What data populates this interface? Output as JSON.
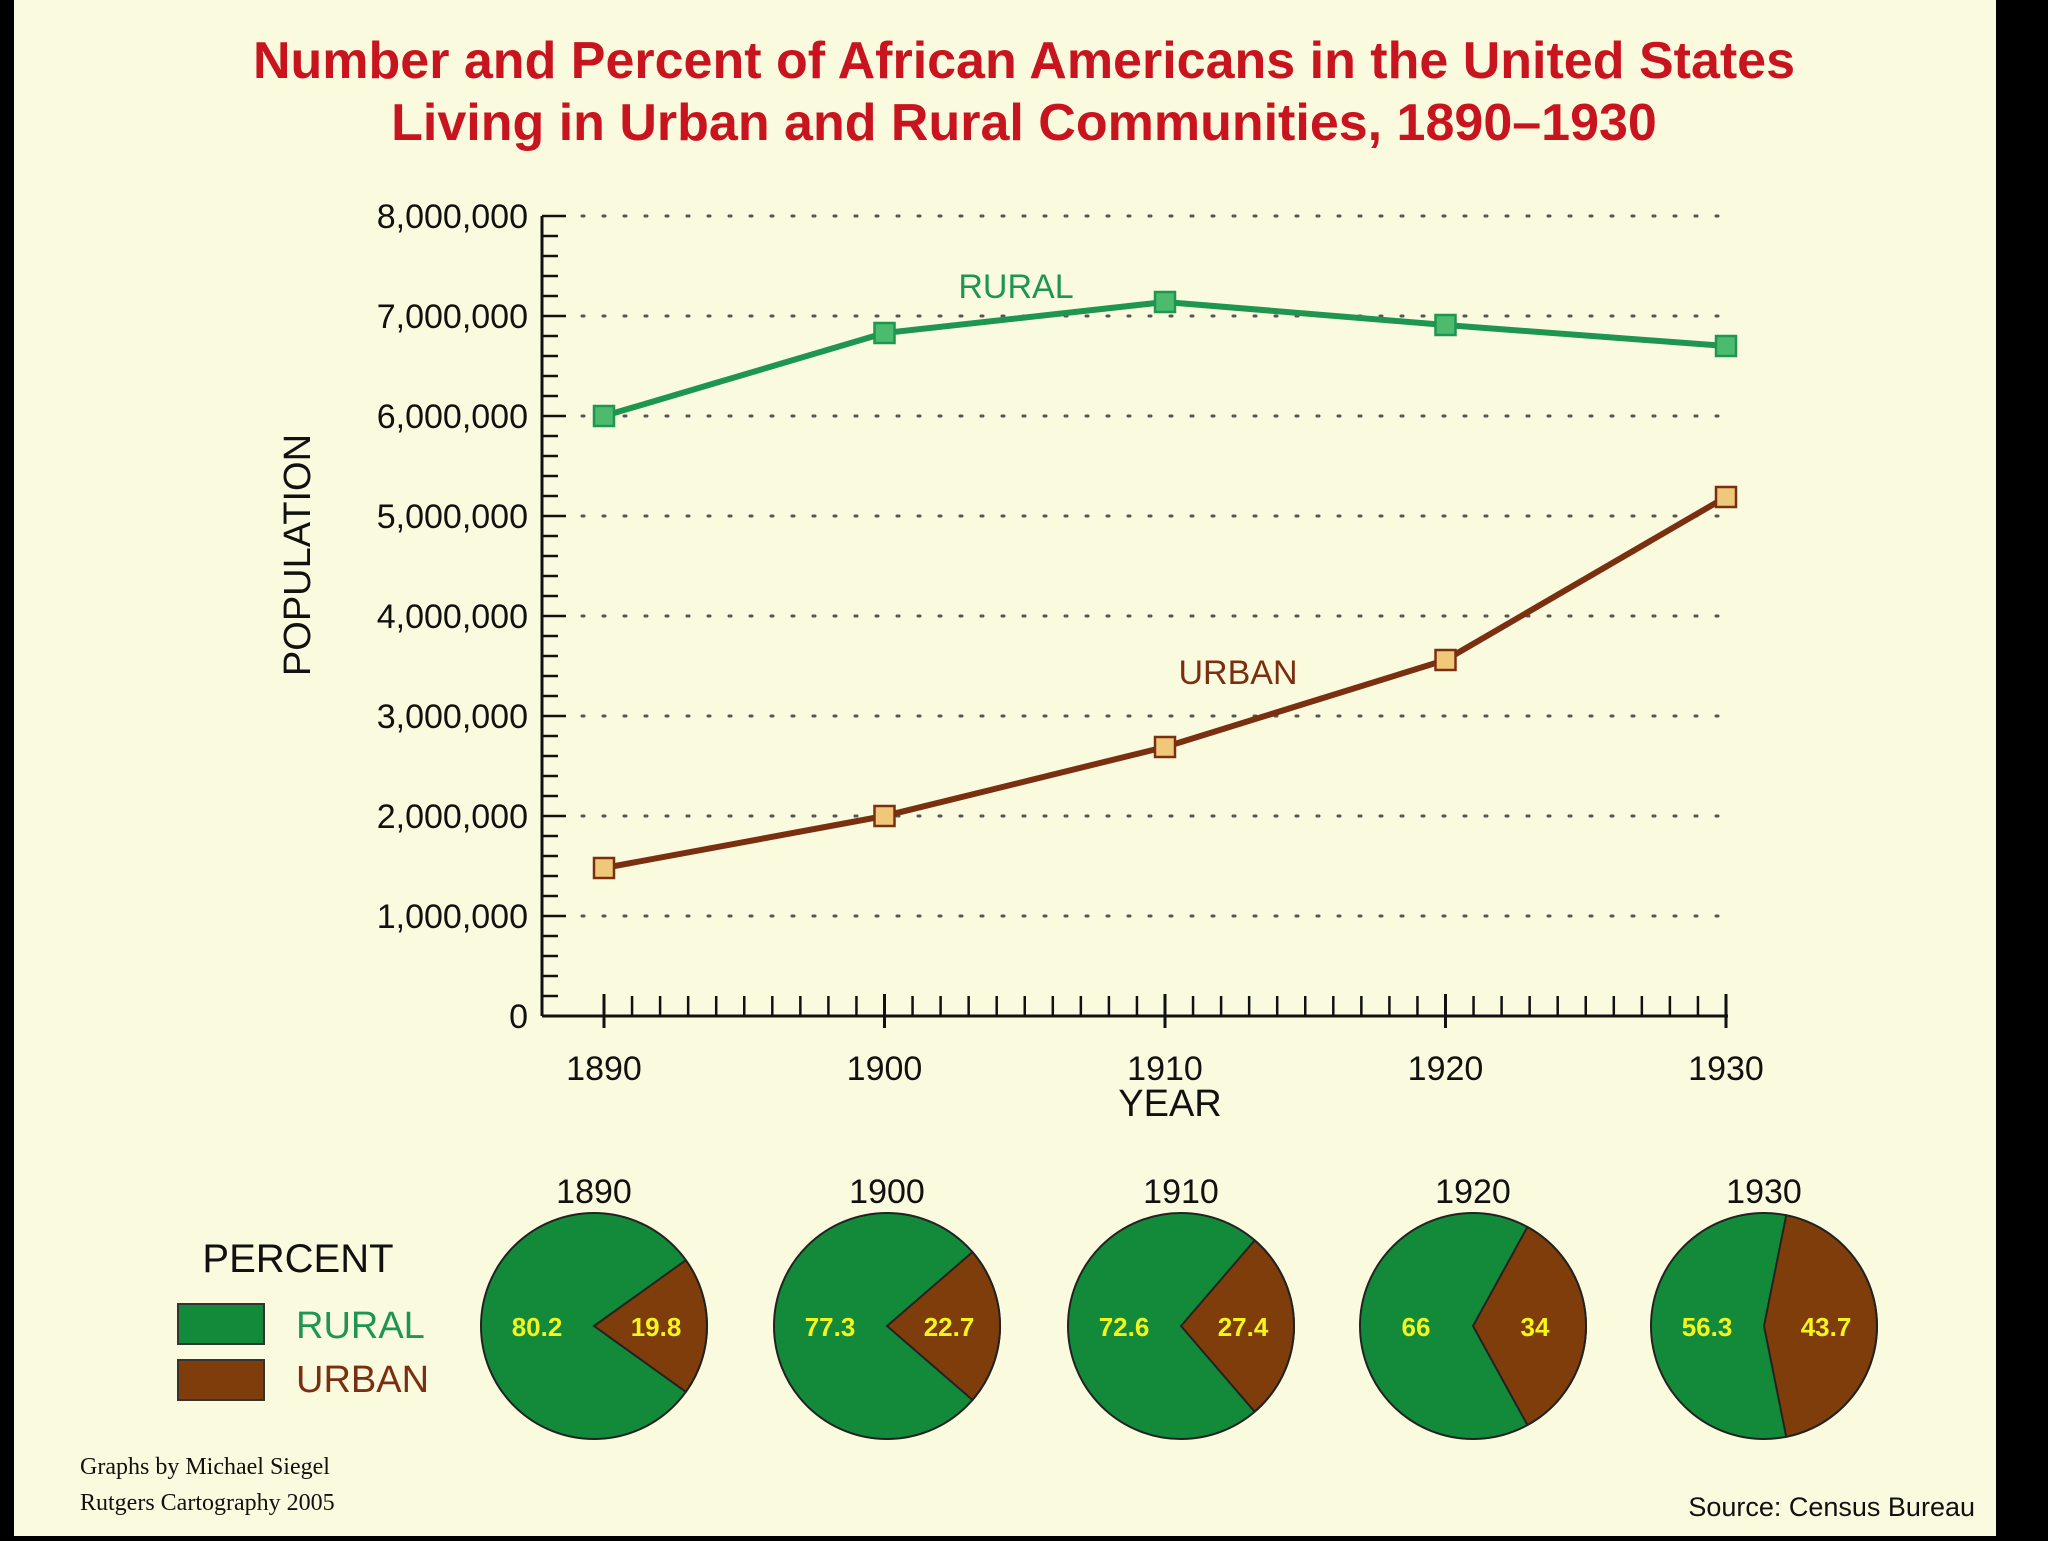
{
  "chart_data": {
    "type": "line",
    "title_line1": "Number and Percent of African Americans in the United States",
    "title_line2": "Living in Urban and Rural Communities, 1890–1930",
    "xlabel": "YEAR",
    "ylabel": "POPULATION",
    "x": [
      1890,
      1900,
      1910,
      1920,
      1930
    ],
    "x_tick_labels": [
      "1890",
      "1900",
      "1910",
      "1920",
      "1930"
    ],
    "ylim": [
      0,
      8000000
    ],
    "y_ticks": [
      0,
      1000000,
      2000000,
      3000000,
      4000000,
      5000000,
      6000000,
      7000000,
      8000000
    ],
    "y_tick_labels": [
      "0",
      "1,000,000",
      "2,000,000",
      "3,000,000",
      "4,000,000",
      "5,000,000",
      "6,000,000",
      "7,000,000",
      "8,000,000"
    ],
    "grid": true,
    "series": [
      {
        "name": "RURAL",
        "values": [
          6000000,
          6830000,
          7140000,
          6910000,
          6700000
        ],
        "color": "#1e9650",
        "marker_color": "#4cbb6e"
      },
      {
        "name": "URBAN",
        "values": [
          1480000,
          2000000,
          2690000,
          3560000,
          5190000
        ],
        "color": "#7a3010",
        "marker_color": "#f0c87a"
      }
    ],
    "pies": [
      {
        "year": "1890",
        "rural": 80.2,
        "urban": 19.8,
        "rural_label": "80.2",
        "urban_label": "19.8"
      },
      {
        "year": "1900",
        "rural": 77.3,
        "urban": 22.7,
        "rural_label": "77.3",
        "urban_label": "22.7"
      },
      {
        "year": "1910",
        "rural": 72.6,
        "urban": 27.4,
        "rural_label": "72.6",
        "urban_label": "27.4"
      },
      {
        "year": "1920",
        "rural": 66,
        "urban": 34,
        "rural_label": "66",
        "urban_label": "34"
      },
      {
        "year": "1930",
        "rural": 56.3,
        "urban": 43.7,
        "rural_label": "56.3",
        "urban_label": "43.7"
      }
    ],
    "legend": {
      "title": "PERCENT",
      "items": [
        {
          "label": "RURAL",
          "color": "#138a3a",
          "text_color": "#1e9650"
        },
        {
          "label": "URBAN",
          "color": "#7f3d0c",
          "text_color": "#7a3010"
        }
      ]
    },
    "credit_line1": "Graphs by Michael Siegel",
    "credit_line2": "Rutgers Cartography 2005",
    "source": "Source: Census Bureau"
  },
  "colors": {
    "background": "#fafade",
    "grid": "#555555",
    "pie_rural": "#138a3a",
    "pie_urban": "#7f3d0c"
  }
}
